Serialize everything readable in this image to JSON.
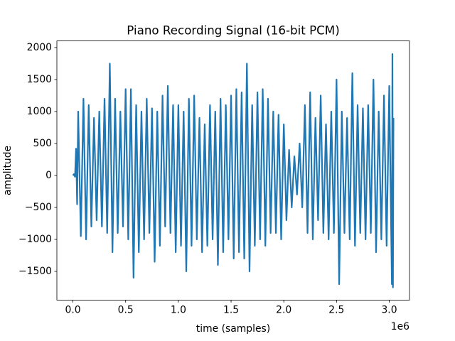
{
  "chart_data": {
    "type": "line",
    "title": "Piano Recording Signal (16-bit PCM)",
    "xlabel": "time (samples)",
    "ylabel": "amplitude",
    "x_offset_label": "1e6",
    "color": "#1f77b4",
    "x": [
      0,
      10000,
      20000,
      30000,
      40000,
      50000,
      75000,
      100000,
      125000,
      150000,
      175000,
      200000,
      225000,
      250000,
      275000,
      300000,
      325000,
      350000,
      375000,
      400000,
      425000,
      450000,
      475000,
      500000,
      525000,
      550000,
      575000,
      600000,
      625000,
      650000,
      675000,
      700000,
      725000,
      750000,
      775000,
      800000,
      825000,
      850000,
      875000,
      900000,
      925000,
      950000,
      975000,
      1000000,
      1025000,
      1050000,
      1075000,
      1100000,
      1125000,
      1150000,
      1175000,
      1200000,
      1225000,
      1250000,
      1275000,
      1300000,
      1325000,
      1350000,
      1375000,
      1400000,
      1425000,
      1450000,
      1475000,
      1500000,
      1525000,
      1550000,
      1575000,
      1600000,
      1625000,
      1650000,
      1675000,
      1700000,
      1725000,
      1750000,
      1775000,
      1800000,
      1825000,
      1850000,
      1875000,
      1900000,
      1925000,
      1950000,
      1975000,
      2000000,
      2025000,
      2050000,
      2075000,
      2100000,
      2125000,
      2150000,
      2175000,
      2200000,
      2225000,
      2250000,
      2275000,
      2300000,
      2325000,
      2350000,
      2375000,
      2400000,
      2425000,
      2450000,
      2475000,
      2500000,
      2525000,
      2550000,
      2575000,
      2600000,
      2625000,
      2650000,
      2675000,
      2700000,
      2725000,
      2750000,
      2775000,
      2800000,
      2825000,
      2850000,
      2875000,
      2900000,
      2925000,
      2950000,
      2975000,
      3000000,
      3025000,
      3030000,
      3035000,
      3040000
    ],
    "values": [
      0,
      20,
      -20,
      420,
      -450,
      1000,
      -950,
      1200,
      -1000,
      1100,
      -800,
      900,
      -700,
      1000,
      -800,
      1200,
      -900,
      1750,
      -1200,
      1200,
      -900,
      1000,
      -800,
      1350,
      -1000,
      1350,
      -1600,
      1100,
      -1200,
      1000,
      -1000,
      1200,
      -900,
      1050,
      -1350,
      1000,
      -1100,
      1250,
      -800,
      1400,
      -900,
      1100,
      -1200,
      1100,
      -1100,
      1000,
      -1500,
      1200,
      -1100,
      1250,
      -1000,
      900,
      -1200,
      800,
      -1100,
      1100,
      -1000,
      1000,
      -1400,
      1200,
      -1200,
      1100,
      -1000,
      1250,
      -1300,
      1350,
      -1200,
      1300,
      -1300,
      1750,
      -1500,
      1100,
      -1100,
      1300,
      -1000,
      1350,
      -1100,
      1200,
      -900,
      1000,
      -900,
      950,
      -1000,
      800,
      -700,
      400,
      -500,
      300,
      -300,
      500,
      -500,
      1100,
      -900,
      1300,
      -1000,
      900,
      -700,
      1250,
      -900,
      800,
      -1000,
      1000,
      -900,
      1500,
      -1700,
      1000,
      -900,
      900,
      -1000,
      1600,
      -1100,
      1100,
      -900,
      1050,
      -1000,
      1100,
      -900,
      1500,
      -1200,
      1000,
      -1000,
      1250,
      -1100,
      1400,
      -1700,
      1900,
      -1750,
      900
    ],
    "xlim": [
      -152000,
      3192000
    ],
    "ylim": [
      -1949,
      2104
    ],
    "xticks": [
      {
        "value": 0,
        "label": "0.0"
      },
      {
        "value": 500000,
        "label": "0.5"
      },
      {
        "value": 1000000,
        "label": "1.0"
      },
      {
        "value": 1500000,
        "label": "1.5"
      },
      {
        "value": 2000000,
        "label": "2.0"
      },
      {
        "value": 2500000,
        "label": "2.5"
      },
      {
        "value": 3000000,
        "label": "3.0"
      }
    ],
    "yticks": [
      {
        "value": -1500,
        "label": "−1500"
      },
      {
        "value": -1000,
        "label": "−1000"
      },
      {
        "value": -500,
        "label": "−500"
      },
      0,
      500,
      1000,
      1500,
      2000
    ]
  }
}
